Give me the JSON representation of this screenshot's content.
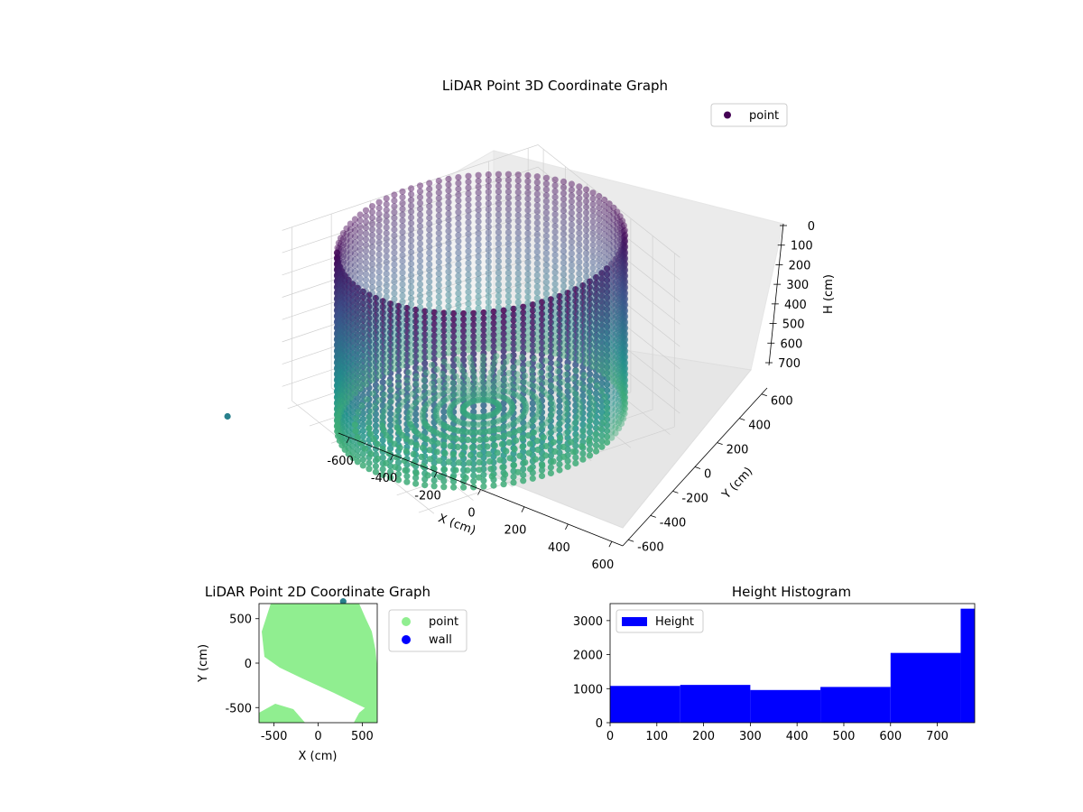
{
  "chart_data": [
    {
      "type": "scatter3d",
      "title": "LiDAR Point 3D Coordinate Graph",
      "xlabel": "X (cm)",
      "ylabel": "Y (cm)",
      "zlabel": "H (cm)",
      "xticks": [
        -600,
        -400,
        -200,
        0,
        200,
        400,
        600
      ],
      "yticks": [
        -600,
        -400,
        -200,
        0,
        200,
        400,
        600
      ],
      "zticks": [
        0,
        100,
        200,
        300,
        400,
        500,
        600,
        700
      ],
      "xlim": [
        -650,
        650
      ],
      "ylim": [
        -650,
        650
      ],
      "zlim": [
        780,
        0
      ],
      "z_inverted": true,
      "colormap": "viridis",
      "legend": {
        "placement": "top-right",
        "entries": [
          {
            "label": "point",
            "color": "#440154"
          }
        ]
      },
      "series": [
        {
          "name": "point",
          "description_points": "cylindrical wall of points, radius ~650 cm, heights 0–780 cm"
        }
      ]
    },
    {
      "type": "scatter",
      "title": "LiDAR Point 2D Coordinate Graph",
      "xlabel": "X (cm)",
      "ylabel": "Y (cm)",
      "xticks": [
        -500,
        0,
        500
      ],
      "yticks": [
        -500,
        0,
        500
      ],
      "xlim": [
        -670,
        670
      ],
      "ylim": [
        -670,
        670
      ],
      "legend": {
        "placement": "outside-right",
        "entries": [
          {
            "label": "point",
            "color": "#90ee90"
          },
          {
            "label": "wall",
            "color": "#0000ff"
          }
        ]
      }
    },
    {
      "type": "bar",
      "title": "Height Histogram",
      "bin_edges": [
        0,
        150,
        300,
        450,
        600,
        750,
        780
      ],
      "values": [
        1080,
        1110,
        960,
        1050,
        2050,
        3350
      ],
      "xticks": [
        0,
        100,
        200,
        300,
        400,
        500,
        600,
        700
      ],
      "yticks": [
        0,
        1000,
        2000,
        3000
      ],
      "xlim": [
        0,
        780
      ],
      "ylim": [
        0,
        3500
      ],
      "color": "#0000ff",
      "legend": {
        "placement": "top-left",
        "entries": [
          {
            "label": "Height",
            "color": "#0000ff"
          }
        ]
      }
    }
  ]
}
